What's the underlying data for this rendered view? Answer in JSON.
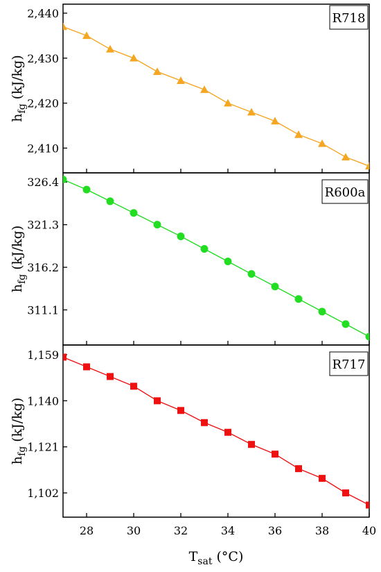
{
  "chart_data": [
    {
      "type": "line",
      "label": "R718",
      "ylabel": "h_fg (kJ/kg)",
      "ylabel_main": "h",
      "ylabel_sub": "fg",
      "ylabel_unit": " (kJ/kg)",
      "color": "#F5A623",
      "marker": "triangle",
      "x": [
        27,
        28,
        29,
        30,
        31,
        32,
        33,
        34,
        35,
        36,
        37,
        38,
        39,
        40
      ],
      "values": [
        2437,
        2435,
        2432,
        2430,
        2427,
        2425,
        2423,
        2420,
        2418,
        2416,
        2413,
        2411,
        2408,
        2406
      ],
      "ylim": [
        2404.5,
        2442
      ],
      "yticks": [
        2410,
        2420,
        2430,
        2440
      ],
      "ytick_labels": [
        "2,410",
        "2,420",
        "2,430",
        "2,440"
      ],
      "xlim": [
        27,
        40
      ]
    },
    {
      "type": "line",
      "label": "R600a",
      "ylabel": "h_fg (kJ/kg)",
      "ylabel_main": "h",
      "ylabel_sub": "fg",
      "ylabel_unit": " (kJ/kg)",
      "color": "#22DD22",
      "marker": "circle",
      "x": [
        27,
        28,
        29,
        30,
        31,
        32,
        33,
        34,
        35,
        36,
        37,
        38,
        39,
        40
      ],
      "values": [
        326.7,
        325.5,
        324.1,
        322.7,
        321.3,
        319.9,
        318.4,
        316.9,
        315.4,
        313.9,
        312.4,
        310.9,
        309.4,
        307.9
      ],
      "ylim": [
        306.9,
        327.5
      ],
      "yticks": [
        311.1,
        316.2,
        321.3,
        326.4
      ],
      "ytick_labels": [
        "311.1",
        "316.2",
        "321.3",
        "326.4"
      ],
      "xlim": [
        27,
        40
      ]
    },
    {
      "type": "line",
      "label": "R717",
      "ylabel": "h_fg (kJ/kg)",
      "ylabel_main": "h",
      "ylabel_sub": "fg",
      "ylabel_unit": " (kJ/kg)",
      "color": "#EE1111",
      "marker": "square",
      "x": [
        27,
        28,
        29,
        30,
        31,
        32,
        33,
        34,
        35,
        36,
        37,
        38,
        39,
        40
      ],
      "values": [
        1158,
        1154,
        1150,
        1146,
        1140,
        1136,
        1131,
        1127,
        1122,
        1118,
        1112,
        1108,
        1102,
        1097
      ],
      "ylim": [
        1092,
        1163
      ],
      "yticks": [
        1102,
        1121,
        1140,
        1159
      ],
      "ytick_labels": [
        "1,102",
        "1,121",
        "1,140",
        "1,159"
      ],
      "xlim": [
        27,
        40
      ]
    }
  ],
  "xaxis": {
    "label": "T_sat (°C)",
    "label_main": "T",
    "label_sub": "sat",
    "label_unit": " (°C)",
    "ticks": [
      28,
      30,
      32,
      34,
      36,
      38,
      40
    ],
    "tick_labels": [
      "28",
      "30",
      "32",
      "34",
      "36",
      "38",
      "40"
    ]
  }
}
